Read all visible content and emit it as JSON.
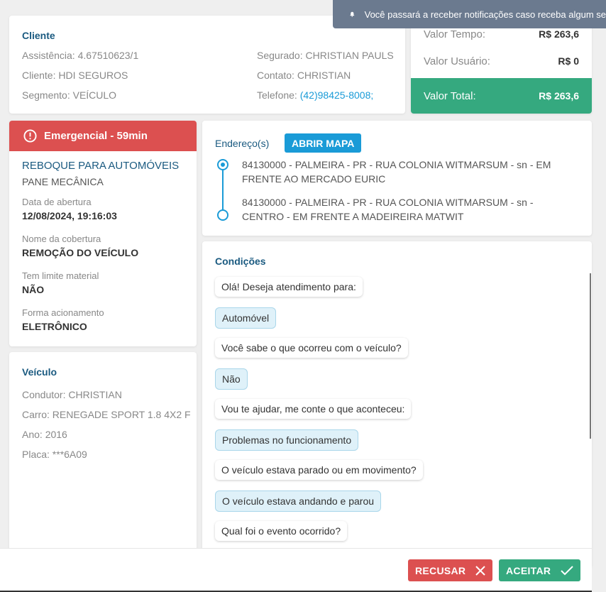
{
  "notification": {
    "text": "Você passará a receber notificações caso receba algum se",
    "icon": "bell-icon"
  },
  "cliente": {
    "title": "Cliente",
    "assistencia": "Assistência: 4.67510623/1",
    "cliente": "Cliente: HDI SEGUROS",
    "segmento": "Segmento: VEÍCULO",
    "segurado": "Segurado: CHRISTIAN PAULS",
    "contato": "Contato: CHRISTIAN",
    "telefone_label": "Telefone:",
    "telefone": "(42)98425-8008;"
  },
  "valores": {
    "tempo_label": "Valor Tempo:",
    "tempo": "R$ 263,6",
    "usuario_label": "Valor Usuário:",
    "usuario": "R$ 0",
    "total_label": "Valor Total:",
    "total": "R$ 263,6"
  },
  "servico": {
    "badge": "Emergencial - 59min",
    "tipo": "REBOQUE PARA AUTOMÓVEIS",
    "motivo": "PANE MECÂNICA",
    "fields": [
      {
        "label": "Data de abertura",
        "value": "12/08/2024, 19:16:03"
      },
      {
        "label": "Nome da cobertura",
        "value": "REMOÇÃO DO VEÍCULO"
      },
      {
        "label": "Tem limite material",
        "value": "NÃO"
      },
      {
        "label": "Forma acionamento",
        "value": "ELETRÔNICO"
      }
    ]
  },
  "veiculo": {
    "title": "Veículo",
    "condutor": "Condutor: CHRISTIAN",
    "carro": "Carro: RENEGADE SPORT 1.8 4X2 F",
    "ano": "Ano: 2016",
    "placa": "Placa: ***6A09"
  },
  "enderecos": {
    "title": "Endereço(s)",
    "map_button": "ABRIR MAPA",
    "items": [
      "84130000 - PALMEIRA - PR - RUA COLONIA WITMARSUM - sn - EM FRENTE AO MERCADO EURIC",
      "84130000 - PALMEIRA - PR - RUA COLONIA WITMARSUM - sn - CENTRO - EM FRENTE A MADEIREIRA MATWIT"
    ]
  },
  "condicoes": {
    "title": "Condições",
    "messages": [
      {
        "from": "bot",
        "text": "Olá! Deseja atendimento para:"
      },
      {
        "from": "user",
        "text": "Automóvel"
      },
      {
        "from": "bot",
        "text": "Você sabe o que ocorreu com o veículo?"
      },
      {
        "from": "user",
        "text": "Não"
      },
      {
        "from": "bot",
        "text": "Vou te ajudar, me conte o que aconteceu:"
      },
      {
        "from": "user",
        "text": "Problemas no funcionamento"
      },
      {
        "from": "bot",
        "text": "O veículo estava parado ou em movimento?"
      },
      {
        "from": "user",
        "text": "O veículo estava andando e parou"
      },
      {
        "from": "bot",
        "text": "Qual foi o evento ocorrido?"
      }
    ]
  },
  "footer": {
    "recusar": "RECUSAR",
    "aceitar": "ACEITAR"
  },
  "colors": {
    "accent": "#1a5a80",
    "link": "#1a9bd7",
    "green": "#35a97f",
    "red": "#dc5050",
    "toast": "#6b7a8f"
  }
}
